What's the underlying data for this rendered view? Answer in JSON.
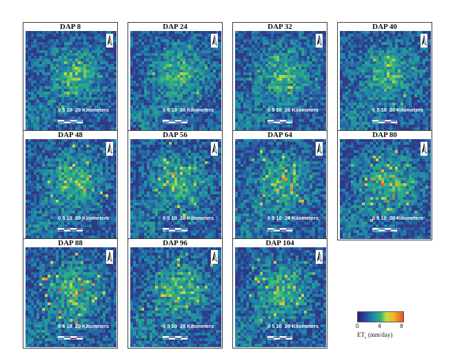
{
  "panels": [
    {
      "title": "DAP 8",
      "heat": 0.18
    },
    {
      "title": "DAP 24",
      "heat": 0.22
    },
    {
      "title": "DAP 32",
      "heat": 0.24
    },
    {
      "title": "DAP 40",
      "heat": 0.26
    },
    {
      "title": "DAP 48",
      "heat": 0.52
    },
    {
      "title": "DAP 56",
      "heat": 0.5
    },
    {
      "title": "DAP 64",
      "heat": 0.62
    },
    {
      "title": "DAP 80",
      "heat": 0.7
    },
    {
      "title": "DAP 88",
      "heat": 0.78
    },
    {
      "title": "DAP 96",
      "heat": 0.68
    },
    {
      "title": "DAP 104",
      "heat": 0.6
    }
  ],
  "scale_bar": {
    "numbers": "0 5 10",
    "label": "20 Kilometers"
  },
  "legend": {
    "ticks": [
      "0",
      "4",
      "8"
    ],
    "label_main": "ET",
    "label_sub": "c",
    "label_unit": " (mm/day)"
  },
  "colors": {
    "low": "#2e1c72",
    "mid_low": "#1f8aa8",
    "mid": "#2fb37a",
    "mid_high": "#c8dc3a",
    "high": "#e65321"
  }
}
